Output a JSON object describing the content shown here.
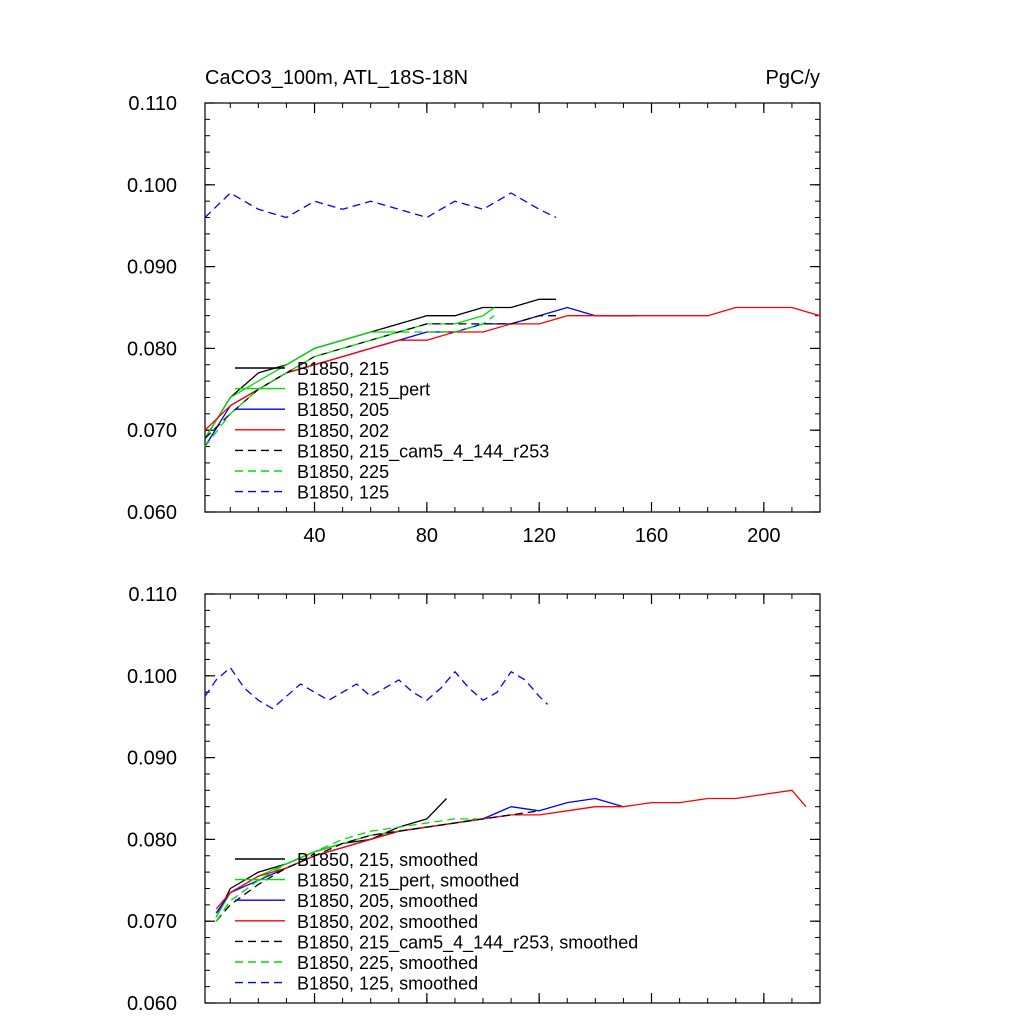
{
  "chart_data": [
    {
      "type": "line",
      "title": "CaCO3_100m, ATL_18S-18N",
      "units": "PgC/y",
      "xlabel": "",
      "ylabel": "",
      "xlim": [
        1,
        220
      ],
      "ylim": [
        0.06,
        0.11
      ],
      "xticks": [
        40,
        80,
        120,
        160,
        200
      ],
      "yticks": [
        0.06,
        0.07,
        0.08,
        0.09,
        0.1,
        0.11
      ],
      "ytick_labels": [
        "0.060",
        "0.070",
        "0.080",
        "0.090",
        "0.100",
        "0.110"
      ],
      "show_x_tick_labels": true,
      "legend_position": "bottom-left",
      "series": [
        {
          "name": "B1850, 215",
          "color": "#000000",
          "dashed": false,
          "x": [
            1,
            10,
            20,
            30,
            40,
            50,
            60,
            70,
            80,
            90,
            100,
            110,
            120,
            126
          ],
          "values": [
            0.069,
            0.074,
            0.077,
            0.078,
            0.08,
            0.081,
            0.082,
            0.083,
            0.084,
            0.084,
            0.085,
            0.085,
            0.086,
            0.086
          ]
        },
        {
          "name": "B1850, 215_pert",
          "color": "#00dd00",
          "dashed": false,
          "x": [
            1,
            10,
            20,
            30,
            40,
            50,
            60,
            70,
            80,
            90,
            100,
            104
          ],
          "values": [
            0.069,
            0.074,
            0.076,
            0.078,
            0.08,
            0.081,
            0.082,
            0.082,
            0.083,
            0.083,
            0.084,
            0.085
          ]
        },
        {
          "name": "B1850, 205",
          "color": "#0000ff",
          "dashed": false,
          "x": [
            1,
            10,
            20,
            30,
            40,
            50,
            60,
            70,
            80,
            90,
            100,
            110,
            120,
            130,
            140,
            150,
            155
          ],
          "values": [
            0.068,
            0.073,
            0.075,
            0.077,
            0.078,
            0.079,
            0.08,
            0.081,
            0.082,
            0.082,
            0.083,
            0.083,
            0.084,
            0.085,
            0.084,
            0.084,
            0.084
          ]
        },
        {
          "name": "B1850, 202",
          "color": "#ff0000",
          "dashed": false,
          "x": [
            1,
            10,
            20,
            30,
            40,
            50,
            60,
            70,
            80,
            90,
            100,
            110,
            120,
            130,
            140,
            150,
            160,
            170,
            180,
            190,
            200,
            210,
            220
          ],
          "values": [
            0.07,
            0.073,
            0.075,
            0.077,
            0.078,
            0.079,
            0.08,
            0.081,
            0.081,
            0.082,
            0.082,
            0.083,
            0.083,
            0.084,
            0.084,
            0.084,
            0.084,
            0.084,
            0.084,
            0.085,
            0.085,
            0.085,
            0.084
          ]
        },
        {
          "name": "B1850, 215_cam5_4_144_r253",
          "color": "#000000",
          "dashed": true,
          "x": [
            1,
            10,
            20,
            30,
            40,
            50,
            60,
            70,
            80,
            90,
            100,
            110,
            120,
            126
          ],
          "values": [
            0.069,
            0.072,
            0.075,
            0.077,
            0.079,
            0.08,
            0.081,
            0.082,
            0.083,
            0.083,
            0.083,
            0.083,
            0.084,
            0.084
          ]
        },
        {
          "name": "B1850, 225",
          "color": "#00dd00",
          "dashed": true,
          "x": [
            1,
            10,
            20,
            30,
            40,
            50,
            60,
            70,
            80,
            90,
            100,
            104
          ],
          "values": [
            0.068,
            0.072,
            0.075,
            0.077,
            0.079,
            0.08,
            0.081,
            0.082,
            0.082,
            0.082,
            0.083,
            0.084
          ]
        },
        {
          "name": "B1850, 125",
          "color": "#0000ff",
          "dashed": true,
          "x": [
            1,
            10,
            20,
            30,
            40,
            50,
            60,
            70,
            80,
            90,
            100,
            110,
            120,
            126
          ],
          "values": [
            0.096,
            0.099,
            0.097,
            0.096,
            0.098,
            0.097,
            0.098,
            0.097,
            0.096,
            0.098,
            0.097,
            0.099,
            0.097,
            0.096
          ]
        }
      ]
    },
    {
      "type": "line",
      "title": "",
      "units": "",
      "xlabel": "",
      "ylabel": "",
      "xlim": [
        1,
        220
      ],
      "ylim": [
        0.06,
        0.11
      ],
      "xticks": [
        40,
        80,
        120,
        160,
        200
      ],
      "yticks": [
        0.06,
        0.07,
        0.08,
        0.09,
        0.1,
        0.11
      ],
      "ytick_labels": [
        "0.060",
        "0.070",
        "0.080",
        "0.090",
        "0.100",
        "0.110"
      ],
      "show_x_tick_labels": false,
      "legend_position": "bottom-left",
      "series": [
        {
          "name": "B1850, 215, smoothed",
          "color": "#000000",
          "dashed": false,
          "x": [
            5,
            10,
            20,
            30,
            40,
            50,
            60,
            70,
            80,
            87
          ],
          "values": [
            0.0705,
            0.074,
            0.076,
            0.077,
            0.0785,
            0.0795,
            0.08,
            0.0815,
            0.0825,
            0.085
          ]
        },
        {
          "name": "B1850, 215_pert, smoothed",
          "color": "#00dd00",
          "dashed": false,
          "x": [
            5,
            10,
            20,
            30,
            40,
            50,
            60,
            70,
            80,
            90,
            98
          ],
          "values": [
            0.0705,
            0.0735,
            0.0755,
            0.077,
            0.0785,
            0.0795,
            0.0805,
            0.081,
            0.0815,
            0.082,
            0.0825
          ]
        },
        {
          "name": "B1850, 205, smoothed",
          "color": "#0000ff",
          "dashed": false,
          "x": [
            5,
            10,
            20,
            30,
            40,
            50,
            60,
            70,
            80,
            90,
            100,
            110,
            120,
            130,
            140,
            150
          ],
          "values": [
            0.071,
            0.0735,
            0.075,
            0.0765,
            0.078,
            0.079,
            0.08,
            0.081,
            0.0815,
            0.082,
            0.0825,
            0.084,
            0.0835,
            0.0845,
            0.085,
            0.084
          ]
        },
        {
          "name": "B1850, 202, smoothed",
          "color": "#ff0000",
          "dashed": false,
          "x": [
            5,
            10,
            20,
            30,
            40,
            50,
            60,
            70,
            80,
            90,
            100,
            110,
            120,
            130,
            140,
            150,
            160,
            170,
            180,
            190,
            200,
            210,
            215
          ],
          "values": [
            0.0715,
            0.0735,
            0.0755,
            0.0765,
            0.078,
            0.079,
            0.08,
            0.081,
            0.0815,
            0.082,
            0.0825,
            0.083,
            0.083,
            0.0835,
            0.084,
            0.084,
            0.0845,
            0.0845,
            0.085,
            0.085,
            0.0855,
            0.086,
            0.084
          ]
        },
        {
          "name": "B1850, 215_cam5_4_144_r253, smoothed",
          "color": "#000000",
          "dashed": true,
          "x": [
            5,
            10,
            20,
            30,
            40,
            50,
            60,
            70,
            80,
            90,
            100,
            110,
            120
          ],
          "values": [
            0.07,
            0.072,
            0.0745,
            0.0765,
            0.078,
            0.0795,
            0.0805,
            0.081,
            0.0815,
            0.082,
            0.0825,
            0.083,
            0.0835
          ]
        },
        {
          "name": "B1850, 225, smoothed",
          "color": "#00dd00",
          "dashed": true,
          "x": [
            5,
            10,
            20,
            30,
            40,
            50,
            60,
            70,
            80,
            90,
            98
          ],
          "values": [
            0.07,
            0.0725,
            0.075,
            0.077,
            0.0785,
            0.08,
            0.081,
            0.0815,
            0.082,
            0.0825,
            0.0825
          ]
        },
        {
          "name": "B1850, 125, smoothed",
          "color": "#0000ff",
          "dashed": true,
          "x": [
            1,
            5,
            10,
            15,
            20,
            25,
            30,
            35,
            40,
            45,
            50,
            55,
            60,
            65,
            70,
            75,
            80,
            85,
            90,
            95,
            100,
            105,
            110,
            115,
            120,
            123
          ],
          "values": [
            0.0975,
            0.0995,
            0.101,
            0.0985,
            0.097,
            0.096,
            0.0975,
            0.099,
            0.098,
            0.097,
            0.098,
            0.099,
            0.0975,
            0.0985,
            0.0995,
            0.098,
            0.097,
            0.0985,
            0.1005,
            0.0985,
            0.097,
            0.098,
            0.1005,
            0.0995,
            0.0975,
            0.0965
          ]
        }
      ]
    }
  ]
}
